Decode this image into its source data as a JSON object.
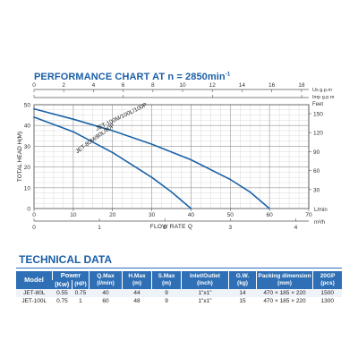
{
  "chart_title_main": "PERFORMANCE CHART AT n = 2850min",
  "chart_title_exp": "-1",
  "chart_data": {
    "type": "line",
    "title": "PERFORMANCE CHART AT n = 2850min-1",
    "xlabel": "FLOW RATE Q",
    "ylabel": "TOTAL HEAD H(M)",
    "xlim": [
      0,
      70
    ],
    "ylim": [
      0,
      50
    ],
    "x_unit": "L/min",
    "y_right_unit": "Feet",
    "x_ticks": [
      0,
      10,
      20,
      30,
      40,
      50,
      60,
      70
    ],
    "y_ticks": [
      0,
      10,
      20,
      30,
      40,
      50
    ],
    "series": [
      {
        "name": "JET-100M/100L/100P",
        "x": [
          0,
          10,
          20,
          30,
          40,
          50,
          55,
          60
        ],
        "y": [
          48,
          43,
          37.5,
          31,
          23.5,
          14,
          8,
          0
        ]
      },
      {
        "name": "JET-80M/80L/80P",
        "x": [
          0,
          10,
          20,
          30,
          35,
          40
        ],
        "y": [
          44,
          37,
          27,
          15,
          8,
          0
        ]
      }
    ],
    "top_axes": [
      {
        "unit": "Us g.p.m",
        "ticks": [
          "0",
          "2",
          "4",
          "6",
          "8",
          "10",
          "12",
          "14",
          "16",
          "18"
        ]
      },
      {
        "unit": "Imp g.p.m",
        "ticks": [
          "0",
          "5",
          "10",
          "15"
        ]
      }
    ],
    "bottom_axis2": {
      "unit": "m³/h",
      "ticks": [
        "0",
        "1",
        "2",
        "3",
        "4"
      ]
    },
    "right_axis": {
      "unit": "Feet",
      "ticks": [
        "30",
        "60",
        "90",
        "120",
        "150"
      ]
    },
    "grid": true
  },
  "technical": {
    "title": "TECHNICAL DATA",
    "headers": {
      "model": "Model",
      "power": "Power",
      "kw": "(Kw)",
      "hp": "(HP)",
      "qmax": "Q.Max",
      "qmax_unit": "(l/min)",
      "hmax": "H.Max",
      "hmax_unit": "(m)",
      "smax": "S.Max",
      "smax_unit": "(m)",
      "inlet": "Inlet/Outlet",
      "inlet_unit": "(inch)",
      "gw": "G.W.",
      "gw_unit": "(kg)",
      "packing": "Packing dimension",
      "packing_unit": "(mm)",
      "gp": "20GP",
      "gp_unit": "(pcs)"
    },
    "rows": [
      {
        "model": "JET-80L",
        "kw": "0.55",
        "hp": "0.75",
        "qmax": "40",
        "hmax": "44",
        "smax": "9",
        "inlet": "1\"x1\"",
        "gw": "14",
        "packing": "470 × 185 × 220",
        "gp": "1500"
      },
      {
        "model": "JET-100L",
        "kw": "0.75",
        "hp": "1",
        "qmax": "60",
        "hmax": "48",
        "smax": "9",
        "inlet": "1\"x1\"",
        "gw": "15",
        "packing": "470 × 185 × 220",
        "gp": "1300"
      }
    ]
  },
  "colors": {
    "accent": "#1b5fa8",
    "curve": "#1a62a8",
    "header_bg": "#2f6fb5",
    "grid_minor": "#cfcfcf",
    "grid_major": "#9a9a9a"
  }
}
